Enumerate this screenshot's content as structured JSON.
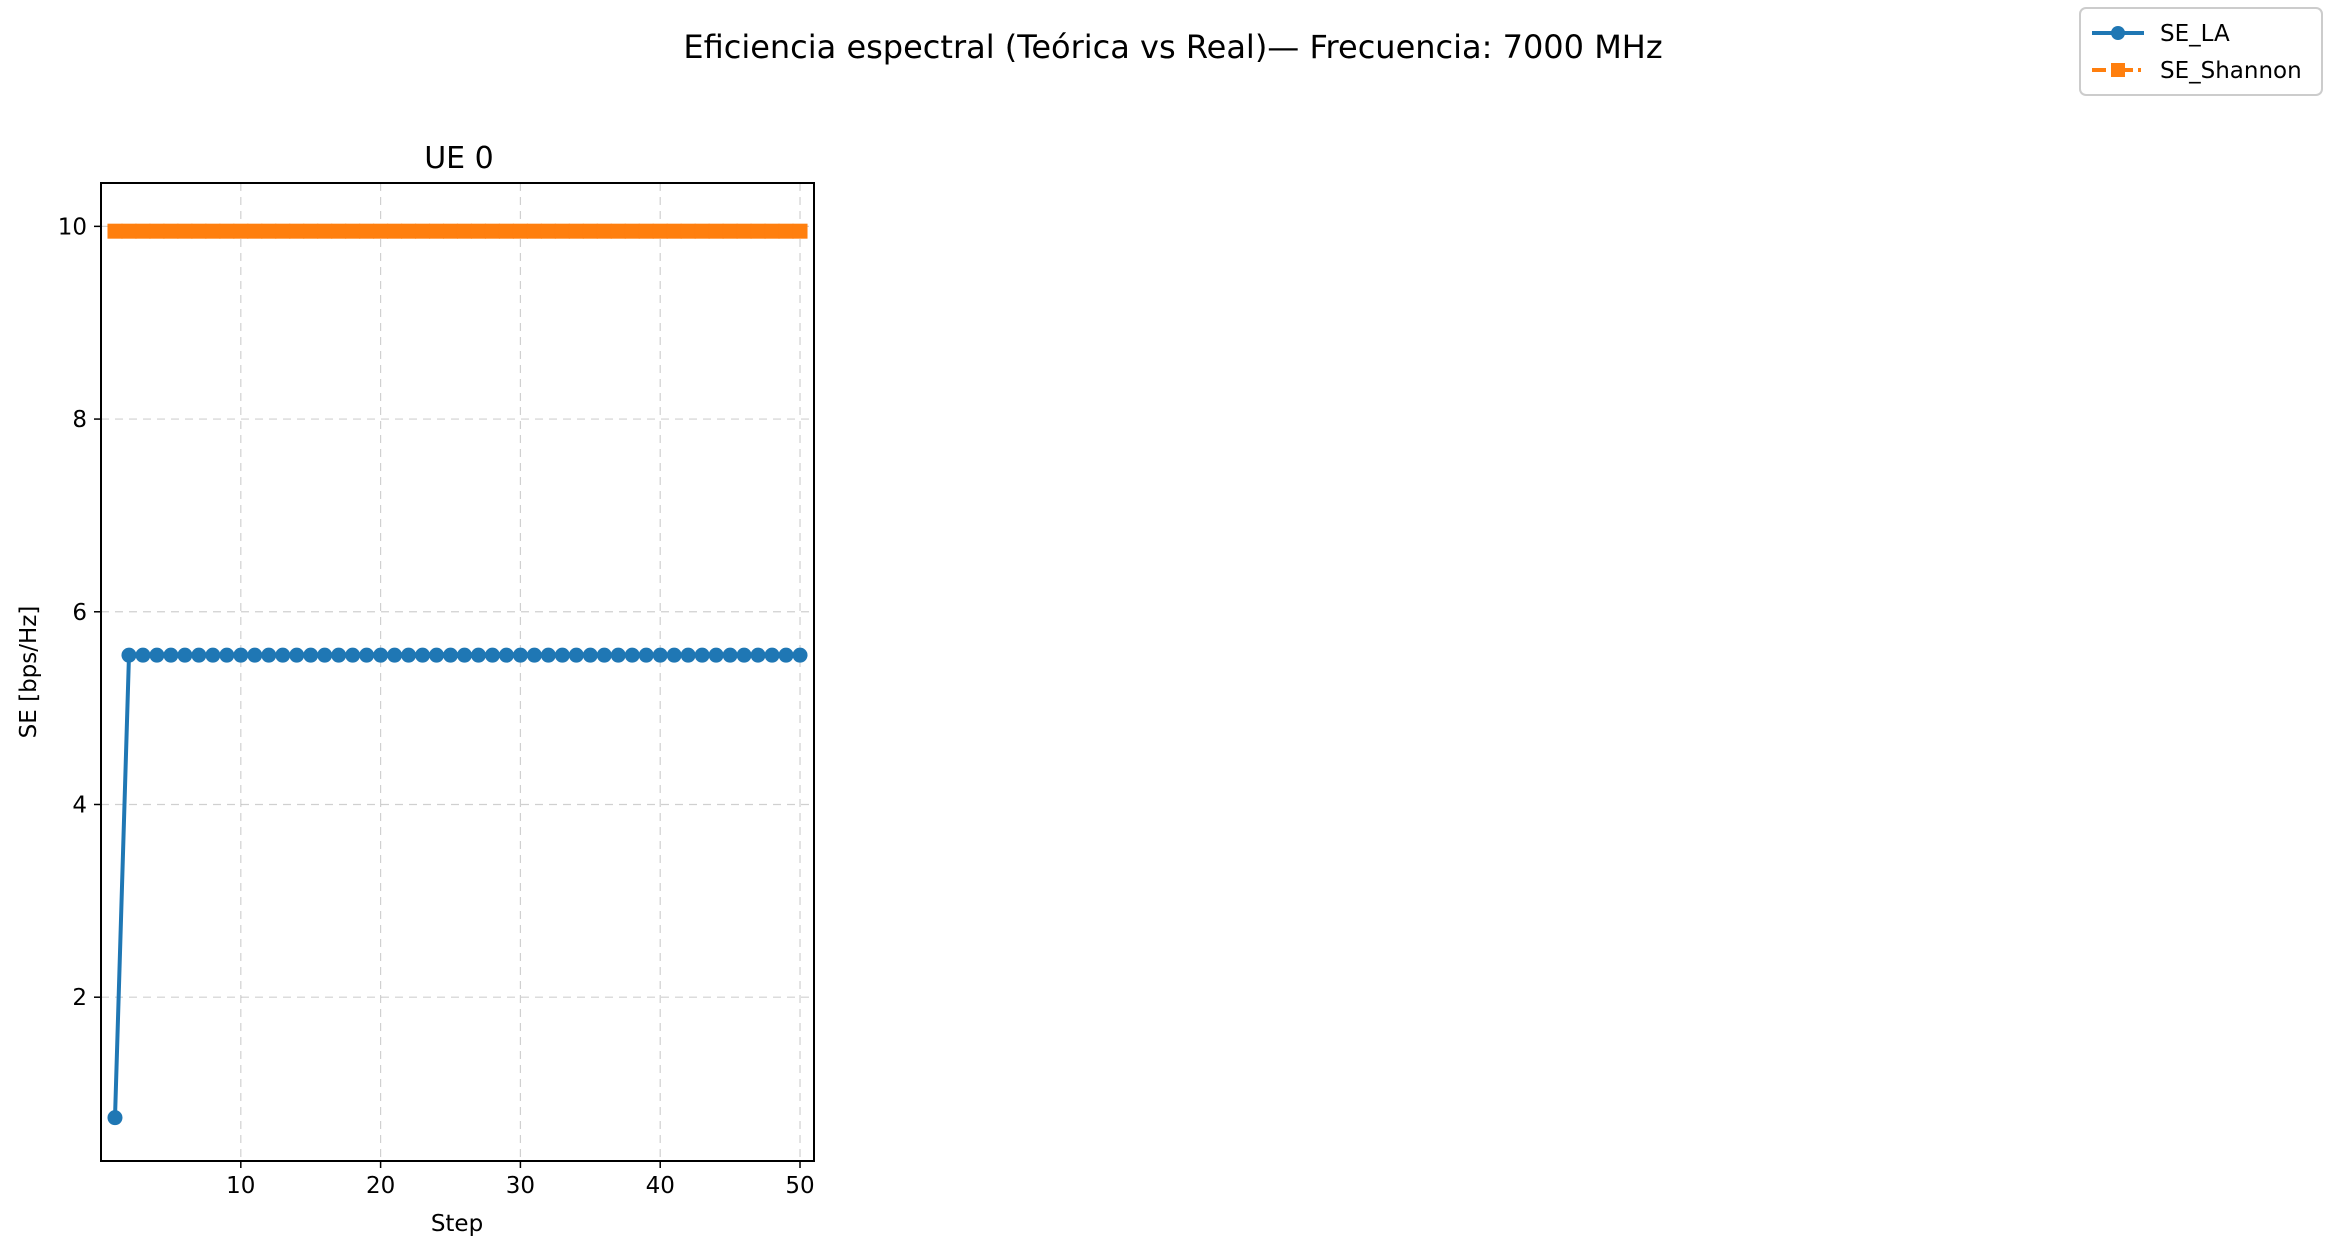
{
  "figure": {
    "suptitle": "Eficiencia espectral (Teórica vs Real)— Frecuencia: 7000 MHz"
  },
  "legend": {
    "placement": "top-right",
    "entries": [
      {
        "label": "SE_LA",
        "color": "#1f77b4",
        "marker": "circle",
        "linestyle": "solid"
      },
      {
        "label": "SE_Shannon",
        "color": "#ff7f0e",
        "marker": "square",
        "linestyle": "dashdot"
      }
    ]
  },
  "chart_data": {
    "type": "line",
    "title": "UE 0",
    "xlabel": "Step",
    "ylabel": "SE [bps/Hz]",
    "xlim": [
      0,
      51
    ],
    "ylim": [
      0.3,
      10.45
    ],
    "grid": true,
    "xticks": [
      10,
      20,
      30,
      40,
      50
    ],
    "xtick_labels": [
      "10",
      "20",
      "30",
      "40",
      "50"
    ],
    "yticks": [
      2,
      4,
      6,
      8,
      10
    ],
    "ytick_labels": [
      "2",
      "4",
      "6",
      "8",
      "10"
    ],
    "x": [
      1,
      2,
      3,
      4,
      5,
      6,
      7,
      8,
      9,
      10,
      11,
      12,
      13,
      14,
      15,
      16,
      17,
      18,
      19,
      20,
      21,
      22,
      23,
      24,
      25,
      26,
      27,
      28,
      29,
      30,
      31,
      32,
      33,
      34,
      35,
      36,
      37,
      38,
      39,
      40,
      41,
      42,
      43,
      44,
      45,
      46,
      47,
      48,
      49,
      50
    ],
    "series": [
      {
        "name": "SE_LA",
        "color": "#1f77b4",
        "marker": "circle",
        "values": [
          0.75,
          5.55,
          5.55,
          5.55,
          5.55,
          5.55,
          5.55,
          5.55,
          5.55,
          5.55,
          5.55,
          5.55,
          5.55,
          5.55,
          5.55,
          5.55,
          5.55,
          5.55,
          5.55,
          5.55,
          5.55,
          5.55,
          5.55,
          5.55,
          5.55,
          5.55,
          5.55,
          5.55,
          5.55,
          5.55,
          5.55,
          5.55,
          5.55,
          5.55,
          5.55,
          5.55,
          5.55,
          5.55,
          5.55,
          5.55,
          5.55,
          5.55,
          5.55,
          5.55,
          5.55,
          5.55,
          5.55,
          5.55,
          5.55,
          5.55
        ]
      },
      {
        "name": "SE_Shannon",
        "color": "#ff7f0e",
        "marker": "square",
        "values": [
          9.95,
          9.95,
          9.95,
          9.95,
          9.95,
          9.95,
          9.95,
          9.95,
          9.95,
          9.95,
          9.95,
          9.95,
          9.95,
          9.95,
          9.95,
          9.95,
          9.95,
          9.95,
          9.95,
          9.95,
          9.95,
          9.95,
          9.95,
          9.95,
          9.95,
          9.95,
          9.95,
          9.95,
          9.95,
          9.95,
          9.95,
          9.95,
          9.95,
          9.95,
          9.95,
          9.95,
          9.95,
          9.95,
          9.95,
          9.95,
          9.95,
          9.95,
          9.95,
          9.95,
          9.95,
          9.95,
          9.95,
          9.95,
          9.95,
          9.95
        ]
      }
    ]
  }
}
